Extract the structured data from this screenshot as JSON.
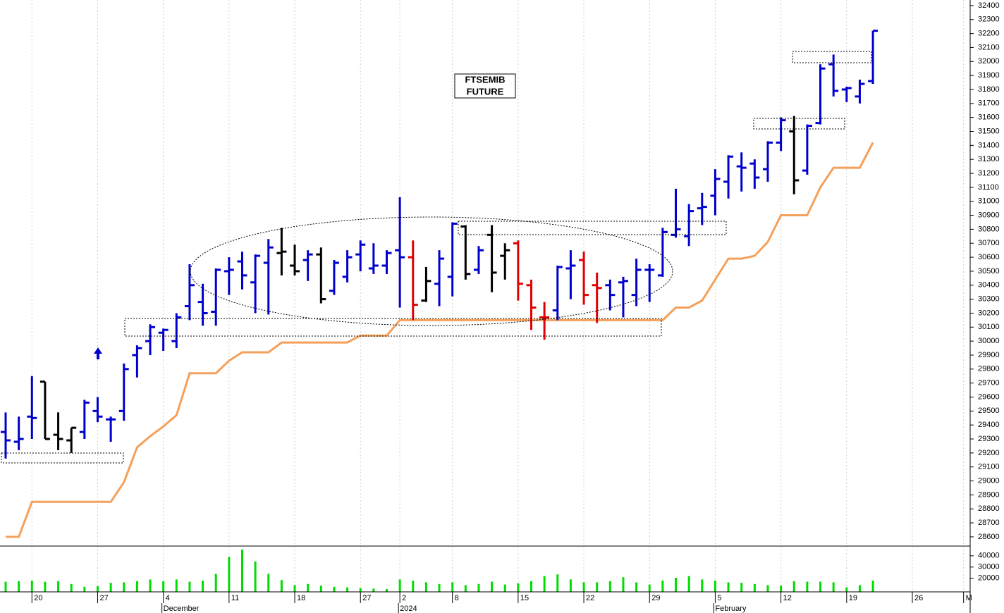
{
  "chart_data": [
    {
      "type": "ohlc",
      "title": "FTSEMIB",
      "subtitle": "FUTURE",
      "xlim": [
        -0.43,
        73.4
      ],
      "ylim": [
        28534,
        32440
      ],
      "xticks": [
        {
          "value": 2,
          "label": "20"
        },
        {
          "value": 7,
          "label": "27"
        },
        {
          "value": 12,
          "label": "4"
        },
        {
          "value": 17,
          "label": "11"
        },
        {
          "value": 22,
          "label": "18"
        },
        {
          "value": 27,
          "label": "27"
        },
        {
          "value": 30,
          "label": "2"
        },
        {
          "value": 34,
          "label": "8"
        },
        {
          "value": 39,
          "label": "15"
        },
        {
          "value": 44,
          "label": "22"
        },
        {
          "value": 49,
          "label": "29"
        },
        {
          "value": 54,
          "label": "5"
        },
        {
          "value": 59,
          "label": "12"
        },
        {
          "value": 64,
          "label": "19"
        },
        {
          "value": 69,
          "label": "26"
        },
        {
          "value": 72.9,
          "label": "M"
        }
      ],
      "x_period_labels": [
        {
          "value": 12,
          "label": "December"
        },
        {
          "value": 30,
          "label": "2024"
        },
        {
          "value": 54,
          "label": "February"
        }
      ],
      "yticks": [
        28600,
        28700,
        28800,
        28900,
        29000,
        29100,
        29200,
        29300,
        29400,
        29500,
        29600,
        29700,
        29800,
        29900,
        30000,
        30100,
        30200,
        30300,
        30400,
        30500,
        30600,
        30700,
        30800,
        30900,
        31000,
        31100,
        31200,
        31300,
        31400,
        31500,
        31600,
        31700,
        31800,
        31900,
        32000,
        32100,
        32200,
        32300,
        32400
      ],
      "grid": true,
      "open": [
        29350,
        29280,
        29460,
        29710,
        29330,
        29290,
        29350,
        29500,
        29440,
        29500,
        29900,
        30000,
        30060,
        30000,
        30250,
        30280,
        30210,
        30500,
        30570,
        30420,
        30560,
        30630,
        30540,
        30580,
        30620,
        30360,
        30460,
        30620,
        30520,
        30540,
        30650,
        30600,
        30290,
        30410,
        30460,
        30820,
        30510,
        30760,
        30610,
        30700,
        30400,
        30170,
        30220,
        30520,
        30580,
        30400,
        30400,
        30420,
        30330,
        30510,
        30470,
        30760,
        30750,
        30950,
        31040,
        31140,
        31250,
        31270,
        31230,
        31420,
        31500,
        31220,
        31560,
        31980,
        31800,
        31750,
        31860
      ],
      "high": [
        29490,
        29460,
        29750,
        29710,
        29490,
        29380,
        29580,
        29600,
        29460,
        29840,
        29970,
        30120,
        30090,
        30200,
        30550,
        30410,
        30520,
        30600,
        30640,
        30620,
        30730,
        30810,
        30690,
        30650,
        30670,
        30580,
        30650,
        30720,
        30700,
        30650,
        31030,
        30720,
        30530,
        30650,
        30850,
        30830,
        30680,
        30830,
        30700,
        30720,
        30440,
        30280,
        30540,
        30650,
        30640,
        30490,
        30440,
        30460,
        30590,
        30550,
        30810,
        31090,
        30980,
        31060,
        31230,
        31330,
        31350,
        31300,
        31430,
        31600,
        31610,
        31550,
        31980,
        32050,
        31820,
        31870,
        32220
      ],
      "low": [
        29160,
        29220,
        29300,
        29300,
        29220,
        29200,
        29300,
        29420,
        29280,
        29430,
        29740,
        29900,
        29930,
        29950,
        30150,
        30110,
        30110,
        30330,
        30370,
        30200,
        30190,
        30470,
        30470,
        30430,
        30270,
        30330,
        30420,
        30500,
        30480,
        30480,
        30240,
        30150,
        30280,
        30250,
        30320,
        30440,
        30480,
        30350,
        30440,
        30290,
        30080,
        30010,
        30150,
        30300,
        30260,
        30130,
        30220,
        30170,
        30250,
        30280,
        30460,
        30740,
        30680,
        30830,
        30900,
        31020,
        31070,
        31090,
        31140,
        31360,
        31050,
        31190,
        31550,
        31750,
        31710,
        31700,
        31840
      ],
      "close": [
        29290,
        29300,
        29450,
        29300,
        29300,
        29380,
        29560,
        29460,
        29440,
        29800,
        29950,
        30100,
        30080,
        30170,
        30400,
        30200,
        30510,
        30510,
        30470,
        30610,
        30670,
        30640,
        30500,
        30620,
        30300,
        30560,
        30600,
        30690,
        30540,
        30630,
        30600,
        30260,
        30430,
        30590,
        30840,
        30480,
        30650,
        30490,
        30650,
        30410,
        30240,
        30170,
        30530,
        30540,
        30330,
        30380,
        30330,
        30430,
        30510,
        30510,
        30780,
        30800,
        30930,
        30960,
        31160,
        31320,
        31240,
        31170,
        31420,
        31580,
        31150,
        31540,
        31950,
        31790,
        31810,
        31840,
        32220
      ],
      "colors": [
        "#0000cc",
        "#0000cc",
        "#0000cc",
        "#000000",
        "#000000",
        "#000000",
        "#0000cc",
        "#0000cc",
        "#0000cc",
        "#0000cc",
        "#0000cc",
        "#0000cc",
        "#0000cc",
        "#0000cc",
        "#0000cc",
        "#0000cc",
        "#0000cc",
        "#0000cc",
        "#0000cc",
        "#0000cc",
        "#0000cc",
        "#000000",
        "#000000",
        "#0000cc",
        "#000000",
        "#0000cc",
        "#0000cc",
        "#0000cc",
        "#0000cc",
        "#0000cc",
        "#0000cc",
        "#e00000",
        "#000000",
        "#0000cc",
        "#0000cc",
        "#000000",
        "#0000cc",
        "#000000",
        "#000000",
        "#e00000",
        "#e00000",
        "#e00000",
        "#0000cc",
        "#0000cc",
        "#e00000",
        "#e00000",
        "#0000cc",
        "#0000cc",
        "#0000cc",
        "#0000cc",
        "#0000cc",
        "#0000cc",
        "#0000cc",
        "#0000cc",
        "#0000cc",
        "#0000cc",
        "#0000cc",
        "#0000cc",
        "#0000cc",
        "#0000cc",
        "#000000",
        "#0000cc",
        "#0000cc",
        "#0000cc",
        "#0000cc",
        "#0000cc",
        "#0000cc"
      ],
      "stop": {
        "color": "#f5a05a",
        "values": [
          28600,
          28600,
          28850,
          28850,
          28850,
          28850,
          28850,
          28850,
          28850,
          28990,
          29240,
          29320,
          29390,
          29470,
          29770,
          29770,
          29770,
          29860,
          29920,
          29920,
          29920,
          29990,
          29990,
          29990,
          29990,
          29990,
          29990,
          30040,
          30040,
          30040,
          30150,
          30150,
          30150,
          30150,
          30150,
          30150,
          30150,
          30150,
          30150,
          30150,
          30150,
          30150,
          30150,
          30150,
          30150,
          30150,
          30150,
          30150,
          30150,
          30150,
          30150,
          30240,
          30240,
          30290,
          30440,
          30590,
          30590,
          30610,
          30710,
          30900,
          30900,
          30900,
          31100,
          31240,
          31240,
          31240,
          31420
        ]
      }
    },
    {
      "type": "bar",
      "color": "#00dd00",
      "ylim": [
        8000,
        48000
      ],
      "yticks": [
        20000,
        30000,
        40000
      ],
      "values": [
        17000,
        17500,
        18000,
        17000,
        17500,
        15000,
        12500,
        13000,
        16000,
        16500,
        17500,
        19000,
        17500,
        19000,
        17000,
        18000,
        24000,
        39000,
        45500,
        35000,
        24000,
        18500,
        14000,
        15000,
        13500,
        12500,
        12000,
        11500,
        11000,
        10500,
        19000,
        18000,
        16500,
        15000,
        16500,
        14000,
        15000,
        17000,
        14500,
        15500,
        17500,
        22000,
        23500,
        19000,
        16500,
        16500,
        17500,
        21000,
        16500,
        14500,
        18000,
        20500,
        22000,
        19000,
        18000,
        16500,
        16000,
        15000,
        14000,
        13500,
        17500,
        17000,
        17000,
        16500,
        12000,
        14000,
        18000
      ]
    }
  ]
}
